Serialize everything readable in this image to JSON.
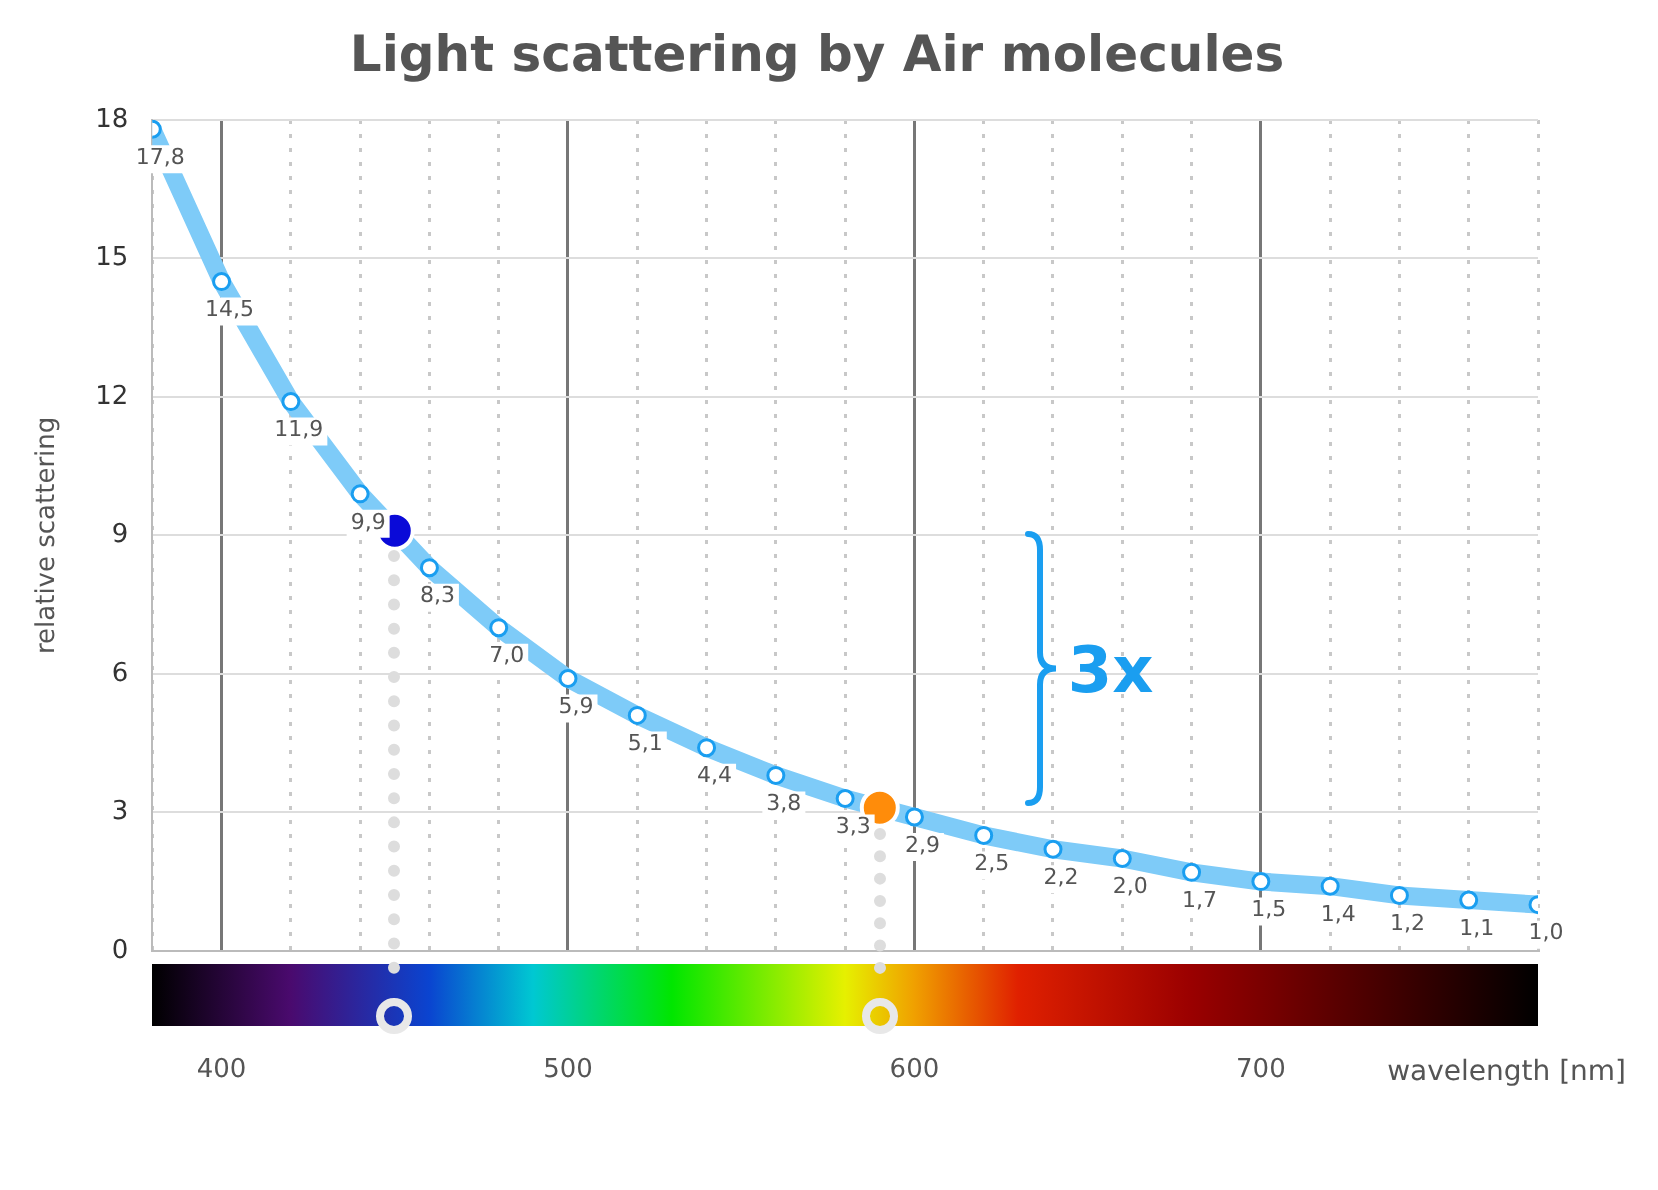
{
  "chart_data": {
    "type": "line",
    "title": "Light scattering by Air molecules",
    "xlabel": "wavelength [nm]",
    "ylabel": "relative scattering",
    "x": [
      380,
      400,
      420,
      440,
      460,
      480,
      500,
      520,
      540,
      560,
      580,
      600,
      620,
      640,
      660,
      680,
      700,
      720,
      740,
      760,
      780
    ],
    "series": [
      {
        "color": "#7ecbf8",
        "values": [
          17.8,
          14.5,
          11.9,
          9.9,
          8.3,
          7.0,
          5.9,
          5.1,
          4.4,
          3.8,
          3.3,
          2.9,
          2.5,
          2.2,
          2.0,
          1.7,
          1.5,
          1.4,
          1.2,
          1.1,
          1.0
        ],
        "value_labels": [
          "17,8",
          "14,5",
          "11,9",
          "9,9",
          "8,3",
          "7,0",
          "5,9",
          "5,1",
          "4,4",
          "3,8",
          "3,3",
          "2,9",
          "2,5",
          "2,2",
          "2,0",
          "1,7",
          "1,5",
          "1,4",
          "1,2",
          "1,1",
          "1,0"
        ]
      },
      {
        "type": "scatter",
        "color": "#0a0ad8",
        "x": [
          450
        ],
        "values": [
          9.1
        ]
      },
      {
        "type": "scatter",
        "color": "#ff8c0a",
        "x": [
          590
        ],
        "values": [
          3.1
        ]
      }
    ],
    "annotations": [
      "3x"
    ],
    "xlim": [
      380,
      780
    ],
    "xticks": [
      {
        "value": 380,
        "label": null
      },
      400,
      {
        "value": 420,
        "label": null
      },
      {
        "value": 440,
        "label": null
      },
      {
        "value": 460,
        "label": null
      },
      {
        "value": 480,
        "label": null
      },
      500,
      {
        "value": 520,
        "label": null
      },
      {
        "value": 540,
        "label": null
      },
      {
        "value": 560,
        "label": null
      },
      {
        "value": 580,
        "label": null
      },
      600,
      {
        "value": 620,
        "label": null
      },
      {
        "value": 640,
        "label": null
      },
      {
        "value": 660,
        "label": null
      },
      {
        "value": 680,
        "label": null
      },
      700,
      {
        "value": 720,
        "label": null
      },
      {
        "value": 740,
        "label": null
      },
      {
        "value": 760,
        "label": null
      },
      {
        "value": 780,
        "label": null
      }
    ],
    "ylim": [
      0,
      18
    ],
    "yticks": [
      0,
      3,
      6,
      9,
      12,
      15,
      18
    ],
    "grid": true,
    "legend": false,
    "marker": "circle"
  }
}
